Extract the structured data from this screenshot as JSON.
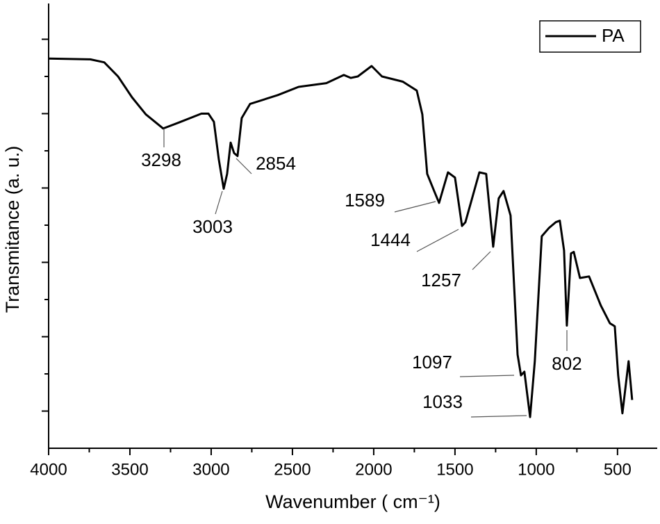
{
  "chart_data": {
    "type": "line",
    "xlabel": "Wavenumber ( cm⁻¹)",
    "ylabel": "Transmitance (a. u.)",
    "xlim": [
      4000,
      260
    ],
    "xticks": [
      4000,
      3500,
      3000,
      2500,
      2000,
      1500,
      1000,
      500
    ],
    "xminorticks": [
      3750,
      3250,
      2750,
      2250,
      1750,
      1250,
      750
    ],
    "ylim": [
      0.5,
      6.5
    ],
    "yticks": [
      1,
      2,
      3,
      4,
      5,
      6
    ],
    "yminorticks": [
      1.5,
      2.5,
      3.5,
      4.5,
      5.5
    ],
    "legend": "upper right",
    "series": [
      {
        "name": "PA",
        "color": "#000000",
        "x": [
          4000,
          3744,
          3658,
          3573,
          3487,
          3402,
          3295,
          3188,
          3060,
          3017,
          2983,
          2953,
          2923,
          2902,
          2880,
          2859,
          2838,
          2812,
          2761,
          2590,
          2462,
          2291,
          2184,
          2141,
          2098,
          2013,
          1949,
          1821,
          1735,
          1701,
          1671,
          1628,
          1598,
          1543,
          1500,
          1457,
          1436,
          1350,
          1308,
          1265,
          1231,
          1201,
          1158,
          1115,
          1094,
          1073,
          1038,
          1009,
          966,
          923,
          880,
          855,
          829,
          812,
          786,
          769,
          731,
          675,
          603,
          547,
          517,
          496,
          470,
          432,
          410
        ],
        "values": [
          5.74,
          5.73,
          5.69,
          5.5,
          5.22,
          4.99,
          4.8,
          4.89,
          5.0,
          5.0,
          4.89,
          4.38,
          3.99,
          4.19,
          4.61,
          4.47,
          4.43,
          4.94,
          5.13,
          5.25,
          5.36,
          5.41,
          5.52,
          5.48,
          5.5,
          5.64,
          5.5,
          5.43,
          5.31,
          4.99,
          4.19,
          3.96,
          3.8,
          4.21,
          4.14,
          3.49,
          3.54,
          4.21,
          4.19,
          3.21,
          3.86,
          3.96,
          3.63,
          1.76,
          1.48,
          1.53,
          0.92,
          1.67,
          3.35,
          3.46,
          3.54,
          3.56,
          3.16,
          2.15,
          3.12,
          3.14,
          2.79,
          2.81,
          2.42,
          2.18,
          2.14,
          1.48,
          0.97,
          1.67,
          1.15
        ]
      }
    ],
    "annotations": [
      "3298",
      "3003",
      "2854",
      "1589",
      "1444",
      "1257",
      "1097",
      "1033",
      "802"
    ]
  }
}
